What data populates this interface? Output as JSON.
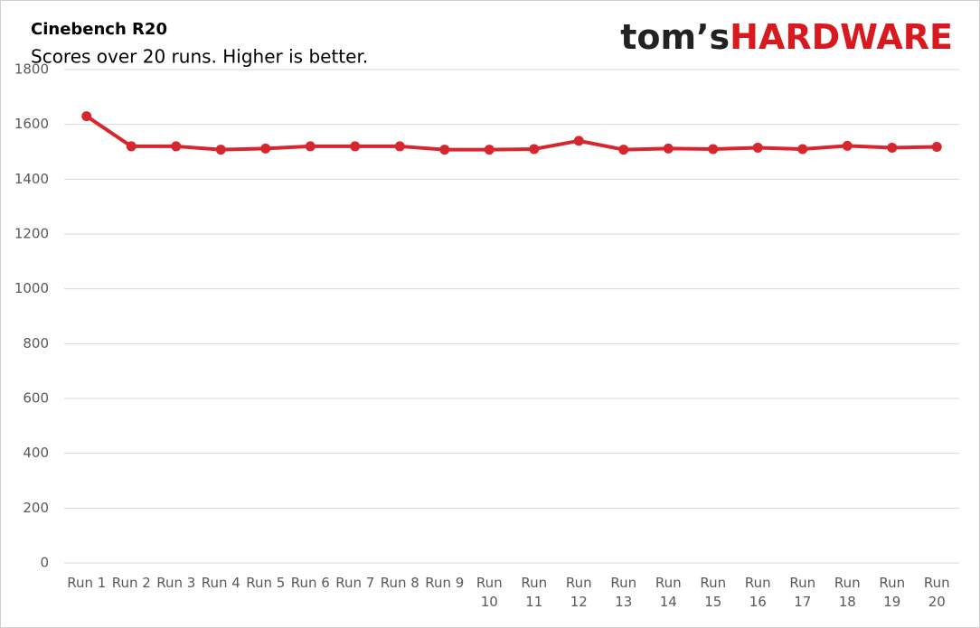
{
  "chart_data": {
    "type": "line",
    "title": "Cinebench R20",
    "subtitle": "Scores over 20 runs. Higher is better.",
    "brand": [
      "tom’s",
      "HARDWARE"
    ],
    "categories": [
      "Run 1",
      "Run 2",
      "Run 3",
      "Run 4",
      "Run 5",
      "Run 6",
      "Run 7",
      "Run 8",
      "Run 9",
      "Run 10",
      "Run 11",
      "Run 12",
      "Run 13",
      "Run 14",
      "Run 15",
      "Run 16",
      "Run 17",
      "Run 18",
      "Run 19",
      "Run 20"
    ],
    "series": [
      {
        "name": "Cinebench R20",
        "color": "#d7262e",
        "values": [
          1630,
          1520,
          1520,
          1508,
          1512,
          1520,
          1520,
          1520,
          1508,
          1508,
          1510,
          1540,
          1508,
          1512,
          1510,
          1515,
          1510,
          1522,
          1515,
          1518
        ]
      }
    ],
    "ylim": [
      0,
      1800
    ],
    "yticks": [
      0,
      200,
      400,
      600,
      800,
      1000,
      1200,
      1400,
      1600,
      1800
    ],
    "grid": true
  }
}
